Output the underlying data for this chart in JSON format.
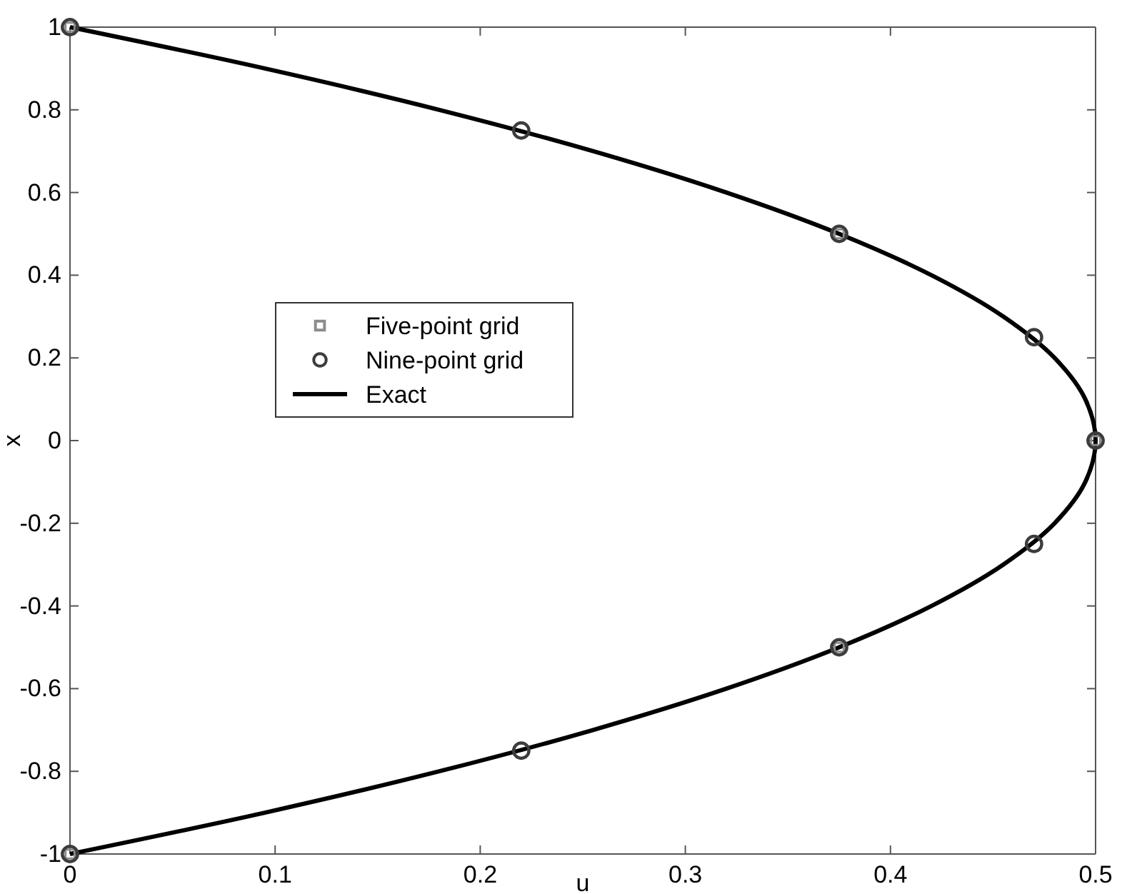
{
  "chart_data": {
    "type": "scatter",
    "xlabel": "u",
    "ylabel": "x",
    "xlim": [
      0,
      0.5
    ],
    "ylim": [
      -1,
      1
    ],
    "xticks": [
      0,
      0.1,
      0.2,
      0.3,
      0.4,
      0.5
    ],
    "yticks": [
      -1,
      -0.8,
      -0.6,
      -0.4,
      -0.2,
      0,
      0.2,
      0.4,
      0.6,
      0.8,
      1
    ],
    "grid": false,
    "legend": "left",
    "series": [
      {
        "name": "Five-point grid",
        "marker": "square",
        "color": "#8c8c8c",
        "x": [
          0,
          0.375,
          0.5,
          0.375,
          0
        ],
        "values": [
          1,
          0.5,
          0,
          -0.5,
          -1
        ]
      },
      {
        "name": "Nine-point grid",
        "marker": "circle",
        "color": "#3c3c3c",
        "x": [
          0,
          0.22,
          0.375,
          0.47,
          0.5,
          0.47,
          0.375,
          0.22,
          0
        ],
        "values": [
          1,
          0.75,
          0.5,
          0.25,
          0,
          -0.25,
          -0.5,
          -0.75,
          -1
        ]
      },
      {
        "name": "Exact",
        "type": "line",
        "line_style": "solid",
        "color": "#000000",
        "x": [
          0,
          0.095,
          0.18,
          0.255,
          0.32,
          0.375,
          0.42,
          0.455,
          0.48,
          0.495,
          0.5,
          0.495,
          0.48,
          0.455,
          0.42,
          0.375,
          0.32,
          0.255,
          0.18,
          0.095,
          0
        ],
        "values": [
          1,
          0.9,
          0.8,
          0.7,
          0.6,
          0.5,
          0.4,
          0.3,
          0.2,
          0.1,
          0,
          -0.1,
          -0.2,
          -0.3,
          -0.4,
          -0.5,
          -0.6,
          -0.7,
          -0.8,
          -0.9,
          -1
        ]
      }
    ]
  }
}
